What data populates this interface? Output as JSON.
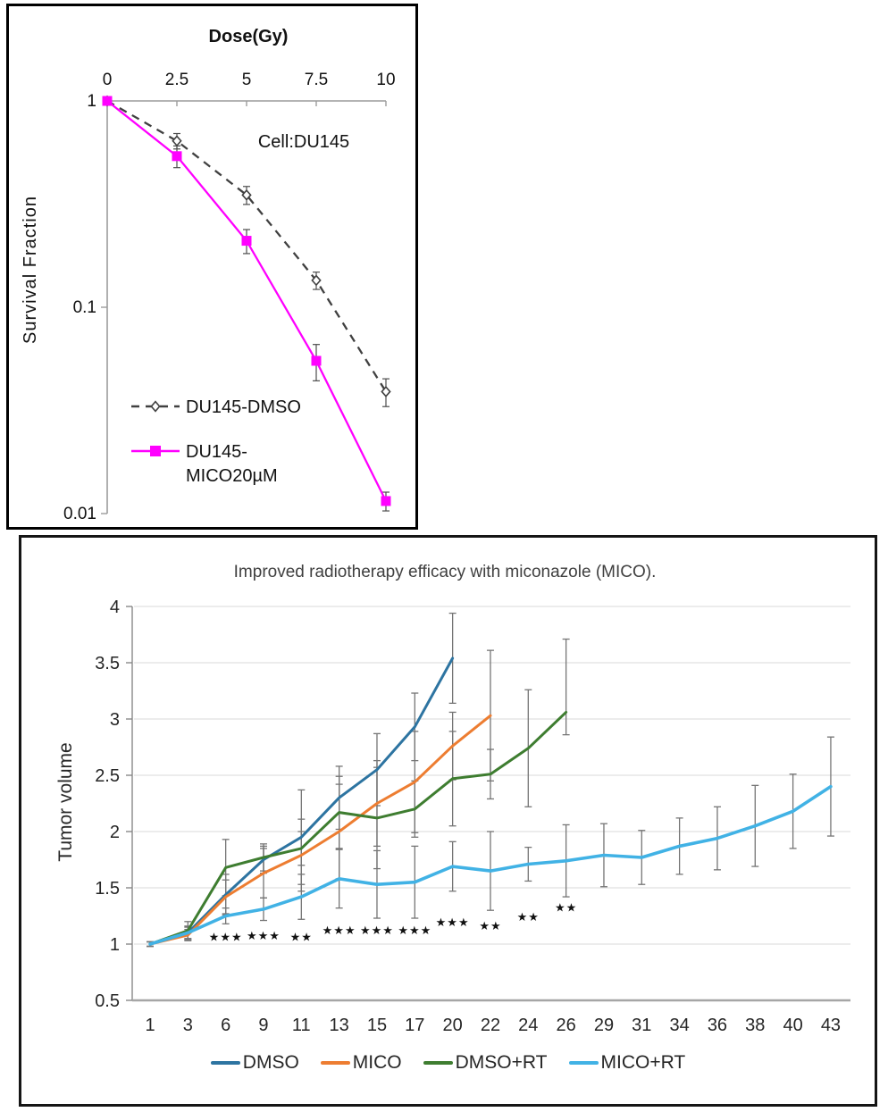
{
  "accent_colors": {
    "magenta": "#ff00ff",
    "dashed_gray": "#404040",
    "dmso_blue": "#2d74a1",
    "mico_orange": "#ed7d31",
    "dmso_rt_green": "#3e7d30",
    "mico_rt_cyan": "#41b2e5",
    "gridline": "#d9d9d9",
    "error_bar": "#757575"
  },
  "chart_data": [
    {
      "type": "line",
      "title": "Dose(Gy)",
      "annotation": "Cell:DU145",
      "ylabel": "Survival Fraction",
      "y_scale": "log",
      "x": [
        0,
        2.5,
        5,
        7.5,
        10
      ],
      "x_tick_labels": [
        "0",
        "2.5",
        "5",
        "7.5",
        "10"
      ],
      "y_tick_labels": [
        "1",
        "0.1",
        "0.01"
      ],
      "ylim": [
        0.01,
        1
      ],
      "legend_position": "inside-bottom-left",
      "series": [
        {
          "name": "DU145-DMSO",
          "legend_lines": [
            "DU145-DMSO"
          ],
          "color": "#404040",
          "style": "dashed",
          "marker": "diamond-open",
          "values": [
            1,
            0.64,
            0.35,
            0.135,
            0.039
          ],
          "errors": [
            0.02,
            0.055,
            0.035,
            0.013,
            0.006
          ]
        },
        {
          "name": "DU145-MICO20µM",
          "legend_lines": [
            "DU145-",
            "MICO20µM"
          ],
          "color": "#ff00ff",
          "style": "solid",
          "marker": "square-filled",
          "values": [
            1,
            0.54,
            0.21,
            0.055,
            0.0115
          ],
          "errors": [
            0.02,
            0.065,
            0.028,
            0.011,
            0.0012
          ]
        }
      ]
    },
    {
      "type": "line",
      "title": "Improved radiotherapy efficacy with miconazole (MICO).",
      "ylabel": "Tumor volume",
      "categories": [
        "1",
        "3",
        "6",
        "9",
        "11",
        "13",
        "15",
        "17",
        "20",
        "22",
        "24",
        "26",
        "29",
        "31",
        "34",
        "36",
        "38",
        "40",
        "43"
      ],
      "y_ticks": [
        "4",
        "3.5",
        "3",
        "2.5",
        "2",
        "1.5",
        "1",
        "0.5"
      ],
      "ylim": [
        0.5,
        4
      ],
      "grid": true,
      "legend_position": "bottom",
      "series": [
        {
          "name": "DMSO",
          "color": "#2d74a1",
          "values": [
            1,
            1.1,
            1.44,
            1.75,
            1.95,
            2.3,
            2.55,
            2.93,
            3.54
          ],
          "errors": [
            0.02,
            0.06,
            0.18,
            0.12,
            0.42,
            0.28,
            0.32,
            0.3,
            0.4
          ]
        },
        {
          "name": "MICO",
          "color": "#ed7d31",
          "values": [
            1,
            1.08,
            1.42,
            1.63,
            1.79,
            2.0,
            2.25,
            2.44,
            2.76,
            3.03
          ],
          "errors": [
            0.02,
            0.05,
            0.15,
            0.22,
            0.32,
            0.42,
            0.38,
            0.45,
            0.3,
            0.58
          ]
        },
        {
          "name": "DMSO+RT",
          "color": "#3e7d30",
          "values": [
            1,
            1.12,
            1.68,
            1.77,
            1.85,
            2.17,
            2.12,
            2.2,
            2.47,
            2.51,
            2.74,
            3.06
          ],
          "errors": [
            0.02,
            0.08,
            0.25,
            0.12,
            0.15,
            0.32,
            0.45,
            0.25,
            0.42,
            0.22,
            0.52,
            [
              0.2,
              0.65
            ]
          ]
        },
        {
          "name": "MICO+RT",
          "color": "#41b2e5",
          "values": [
            1,
            1.1,
            1.25,
            1.31,
            1.42,
            1.58,
            1.53,
            1.55,
            1.69,
            1.65,
            1.71,
            1.74,
            1.79,
            1.77,
            1.87,
            1.94,
            2.05,
            2.18,
            2.4
          ],
          "errors": [
            0.02,
            0.05,
            0.07,
            0.1,
            0.2,
            0.26,
            0.3,
            0.32,
            0.22,
            0.35,
            0.15,
            0.32,
            0.28,
            0.24,
            0.25,
            0.28,
            0.36,
            0.33,
            0.44
          ]
        }
      ],
      "significance": [
        {
          "category": "6",
          "label": "***",
          "stars": 3,
          "y": 1.06
        },
        {
          "category": "9",
          "label": "***",
          "stars": 3,
          "y": 1.07
        },
        {
          "category": "11",
          "label": "**",
          "stars": 2,
          "y": 1.06
        },
        {
          "category": "13",
          "label": "***",
          "stars": 3,
          "y": 1.12
        },
        {
          "category": "15",
          "label": "***",
          "stars": 3,
          "y": 1.12
        },
        {
          "category": "17",
          "label": "***",
          "stars": 3,
          "y": 1.12
        },
        {
          "category": "20",
          "label": "***",
          "stars": 3,
          "y": 1.19
        },
        {
          "category": "22",
          "label": "**",
          "stars": 2,
          "y": 1.16
        },
        {
          "category": "24",
          "label": "**",
          "stars": 2,
          "y": 1.24
        },
        {
          "category": "26",
          "label": "**",
          "stars": 2,
          "y": 1.32
        }
      ]
    }
  ]
}
